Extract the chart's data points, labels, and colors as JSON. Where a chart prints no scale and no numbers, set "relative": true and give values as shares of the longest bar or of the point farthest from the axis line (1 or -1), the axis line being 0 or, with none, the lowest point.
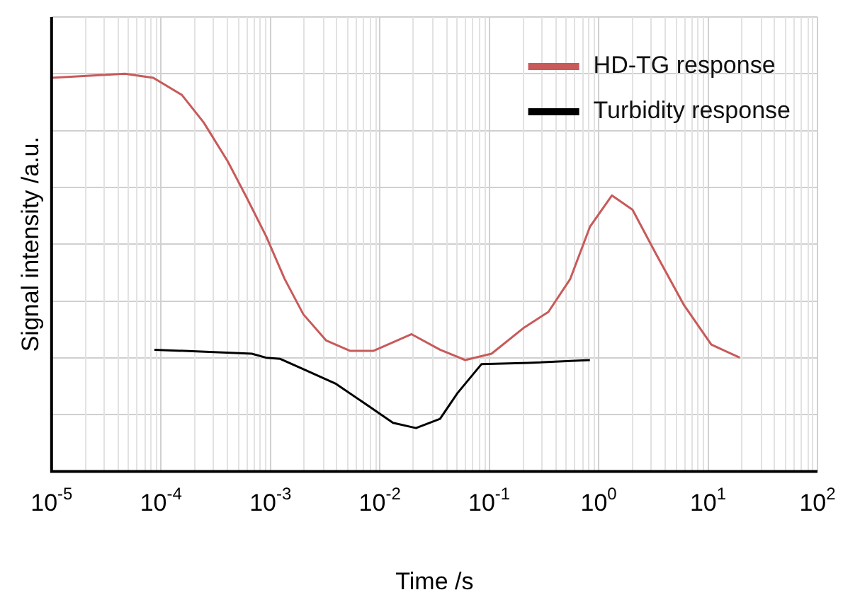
{
  "chart_data": {
    "type": "line",
    "xlabel": "Time /s",
    "ylabel": "Signal intensity /a.u.",
    "relative": true,
    "log": "x",
    "grid": true,
    "legend": "top right",
    "line_style": "solid",
    "marker": "none",
    "xlim": [
      1e-05,
      100
    ],
    "xticks": [
      {
        "value": 1e-05,
        "label": "10$^{-5}$"
      },
      {
        "value": 0.0001,
        "label": "10$^{-4}$"
      },
      {
        "value": 0.001,
        "label": "10$^{-3}$"
      },
      {
        "value": 0.01,
        "label": "10$^{-2}$"
      },
      {
        "value": 0.1,
        "label": "10$^{-1}$"
      },
      {
        "value": 1,
        "label": "10$^{0}$"
      },
      {
        "value": 10,
        "label": "10$^{1}$"
      },
      {
        "value": 100,
        "label": "10$^{2}$"
      }
    ],
    "series": [
      {
        "name": "HD-TG response",
        "color": "#c85a5a",
        "x": [
          1e-05,
          4.68e-05,
          8.51e-05,
          0.000155,
          0.000245,
          0.000407,
          0.000603,
          0.000912,
          0.00135,
          0.002,
          0.00324,
          0.00537,
          0.00871,
          0.0195,
          0.0355,
          0.0603,
          0.105,
          0.209,
          0.347,
          0.55,
          0.832,
          1.32,
          2.04,
          3.31,
          6.03,
          10.7,
          19.5
        ],
        "values": [
          0.99,
          1.0,
          0.99,
          0.947,
          0.878,
          0.78,
          0.69,
          0.592,
          0.484,
          0.395,
          0.329,
          0.303,
          0.303,
          0.345,
          0.306,
          0.28,
          0.296,
          0.362,
          0.401,
          0.484,
          0.615,
          0.694,
          0.658,
          0.549,
          0.418,
          0.319,
          0.286
        ]
      },
      {
        "name": "Turbidity response",
        "color": "#000000",
        "x": [
          8.71e-05,
          0.000676,
          0.000912,
          0.00123,
          0.002,
          0.00398,
          0.00794,
          0.0132,
          0.0214,
          0.0355,
          0.0513,
          0.0851,
          0.229,
          0.832
        ],
        "values": [
          0.306,
          0.296,
          0.286,
          0.283,
          0.257,
          0.22,
          0.164,
          0.122,
          0.109,
          0.132,
          0.197,
          0.27,
          0.273,
          0.28
        ]
      }
    ]
  }
}
